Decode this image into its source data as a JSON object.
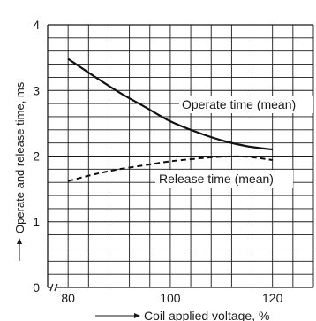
{
  "chart_data": {
    "type": "line",
    "xlabel": "Coil applied voltage, %",
    "ylabel": "Operate and release time, ms",
    "xlim": [
      76,
      128
    ],
    "ylim": [
      0,
      4
    ],
    "xticks": [
      80,
      100,
      120
    ],
    "yticks": [
      0,
      1,
      2,
      3,
      4
    ],
    "axis_break_on_x": true,
    "grid": "on",
    "series": [
      {
        "name": "Operate time (mean)",
        "style": "solid",
        "x": [
          80,
          85,
          90,
          95,
          100,
          105,
          110,
          115,
          120
        ],
        "y": [
          3.48,
          3.22,
          2.97,
          2.75,
          2.53,
          2.37,
          2.24,
          2.15,
          2.1
        ]
      },
      {
        "name": "Release time (mean)",
        "style": "dashed",
        "x": [
          80,
          85,
          90,
          95,
          100,
          105,
          110,
          115,
          120
        ],
        "y": [
          1.62,
          1.72,
          1.8,
          1.86,
          1.92,
          1.96,
          1.99,
          1.99,
          1.94
        ]
      }
    ]
  }
}
